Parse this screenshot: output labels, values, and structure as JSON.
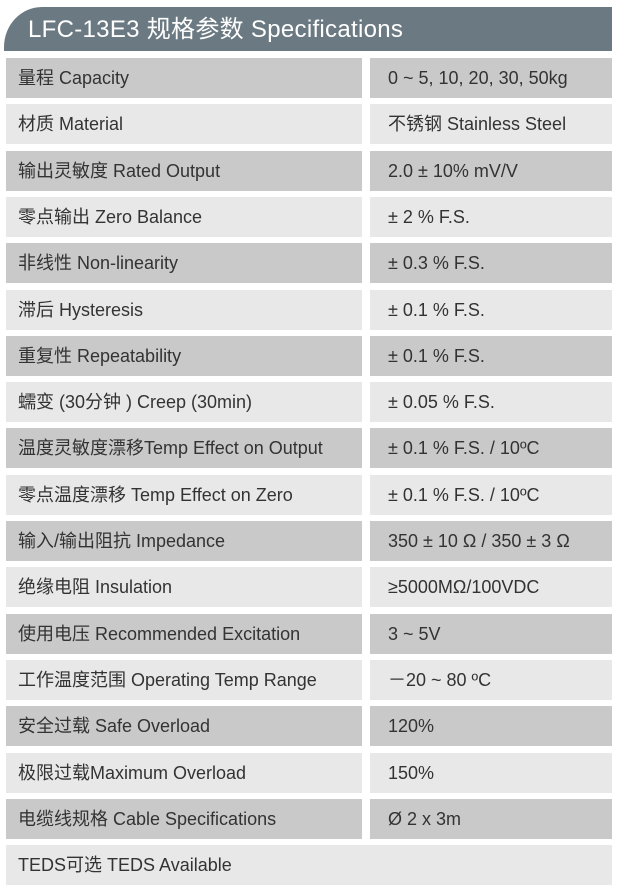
{
  "title": "LFC-13E3  规格参数 Specifications",
  "rows": [
    {
      "label": "量程 Capacity",
      "value": "0 ~ 5, 10, 20, 30, 50kg"
    },
    {
      "label": "材质 Material",
      "value": "不锈钢 Stainless Steel"
    },
    {
      "label": "输出灵敏度 Rated Output",
      "value": "2.0 ± 10% mV/V"
    },
    {
      "label": "零点输出  Zero Balance",
      "value": "± 2 % F.S."
    },
    {
      "label": "非线性 Non-linearity",
      "value": "± 0.3 % F.S."
    },
    {
      "label": "滞后 Hysteresis",
      "value": "± 0.1 % F.S."
    },
    {
      "label": "重复性 Repeatability",
      "value": "± 0.1 % F.S."
    },
    {
      "label": "蠕变 (30分钟 ) Creep (30min)",
      "value": "± 0.05 % F.S."
    },
    {
      "label": "温度灵敏度漂移Temp Effect on Output",
      "value": "± 0.1 % F.S. / 10ºC"
    },
    {
      "label": "零点温度漂移 Temp Effect on Zero",
      "value": "± 0.1 % F.S. / 10ºC"
    },
    {
      "label": "输入/输出阻抗 Impedance",
      "value": "350 ± 10 Ω  /  350 ± 3 Ω"
    },
    {
      "label": "绝缘电阻  Insulation",
      "value": "≥5000MΩ/100VDC"
    },
    {
      "label": "使用电压 Recommended Excitation",
      "value": "3 ~ 5V"
    },
    {
      "label": "工作温度范围 Operating Temp  Range",
      "value": "－20 ~ 80 ºC"
    },
    {
      "label": "安全过载 Safe Overload",
      "value": "120%"
    },
    {
      "label": "极限过载Maximum Overload",
      "value": "150%"
    },
    {
      "label": "电缆线规格 Cable Specifications",
      "value": "Ø  2 x 3m"
    }
  ],
  "footer": "TEDS可选 TEDS Available"
}
